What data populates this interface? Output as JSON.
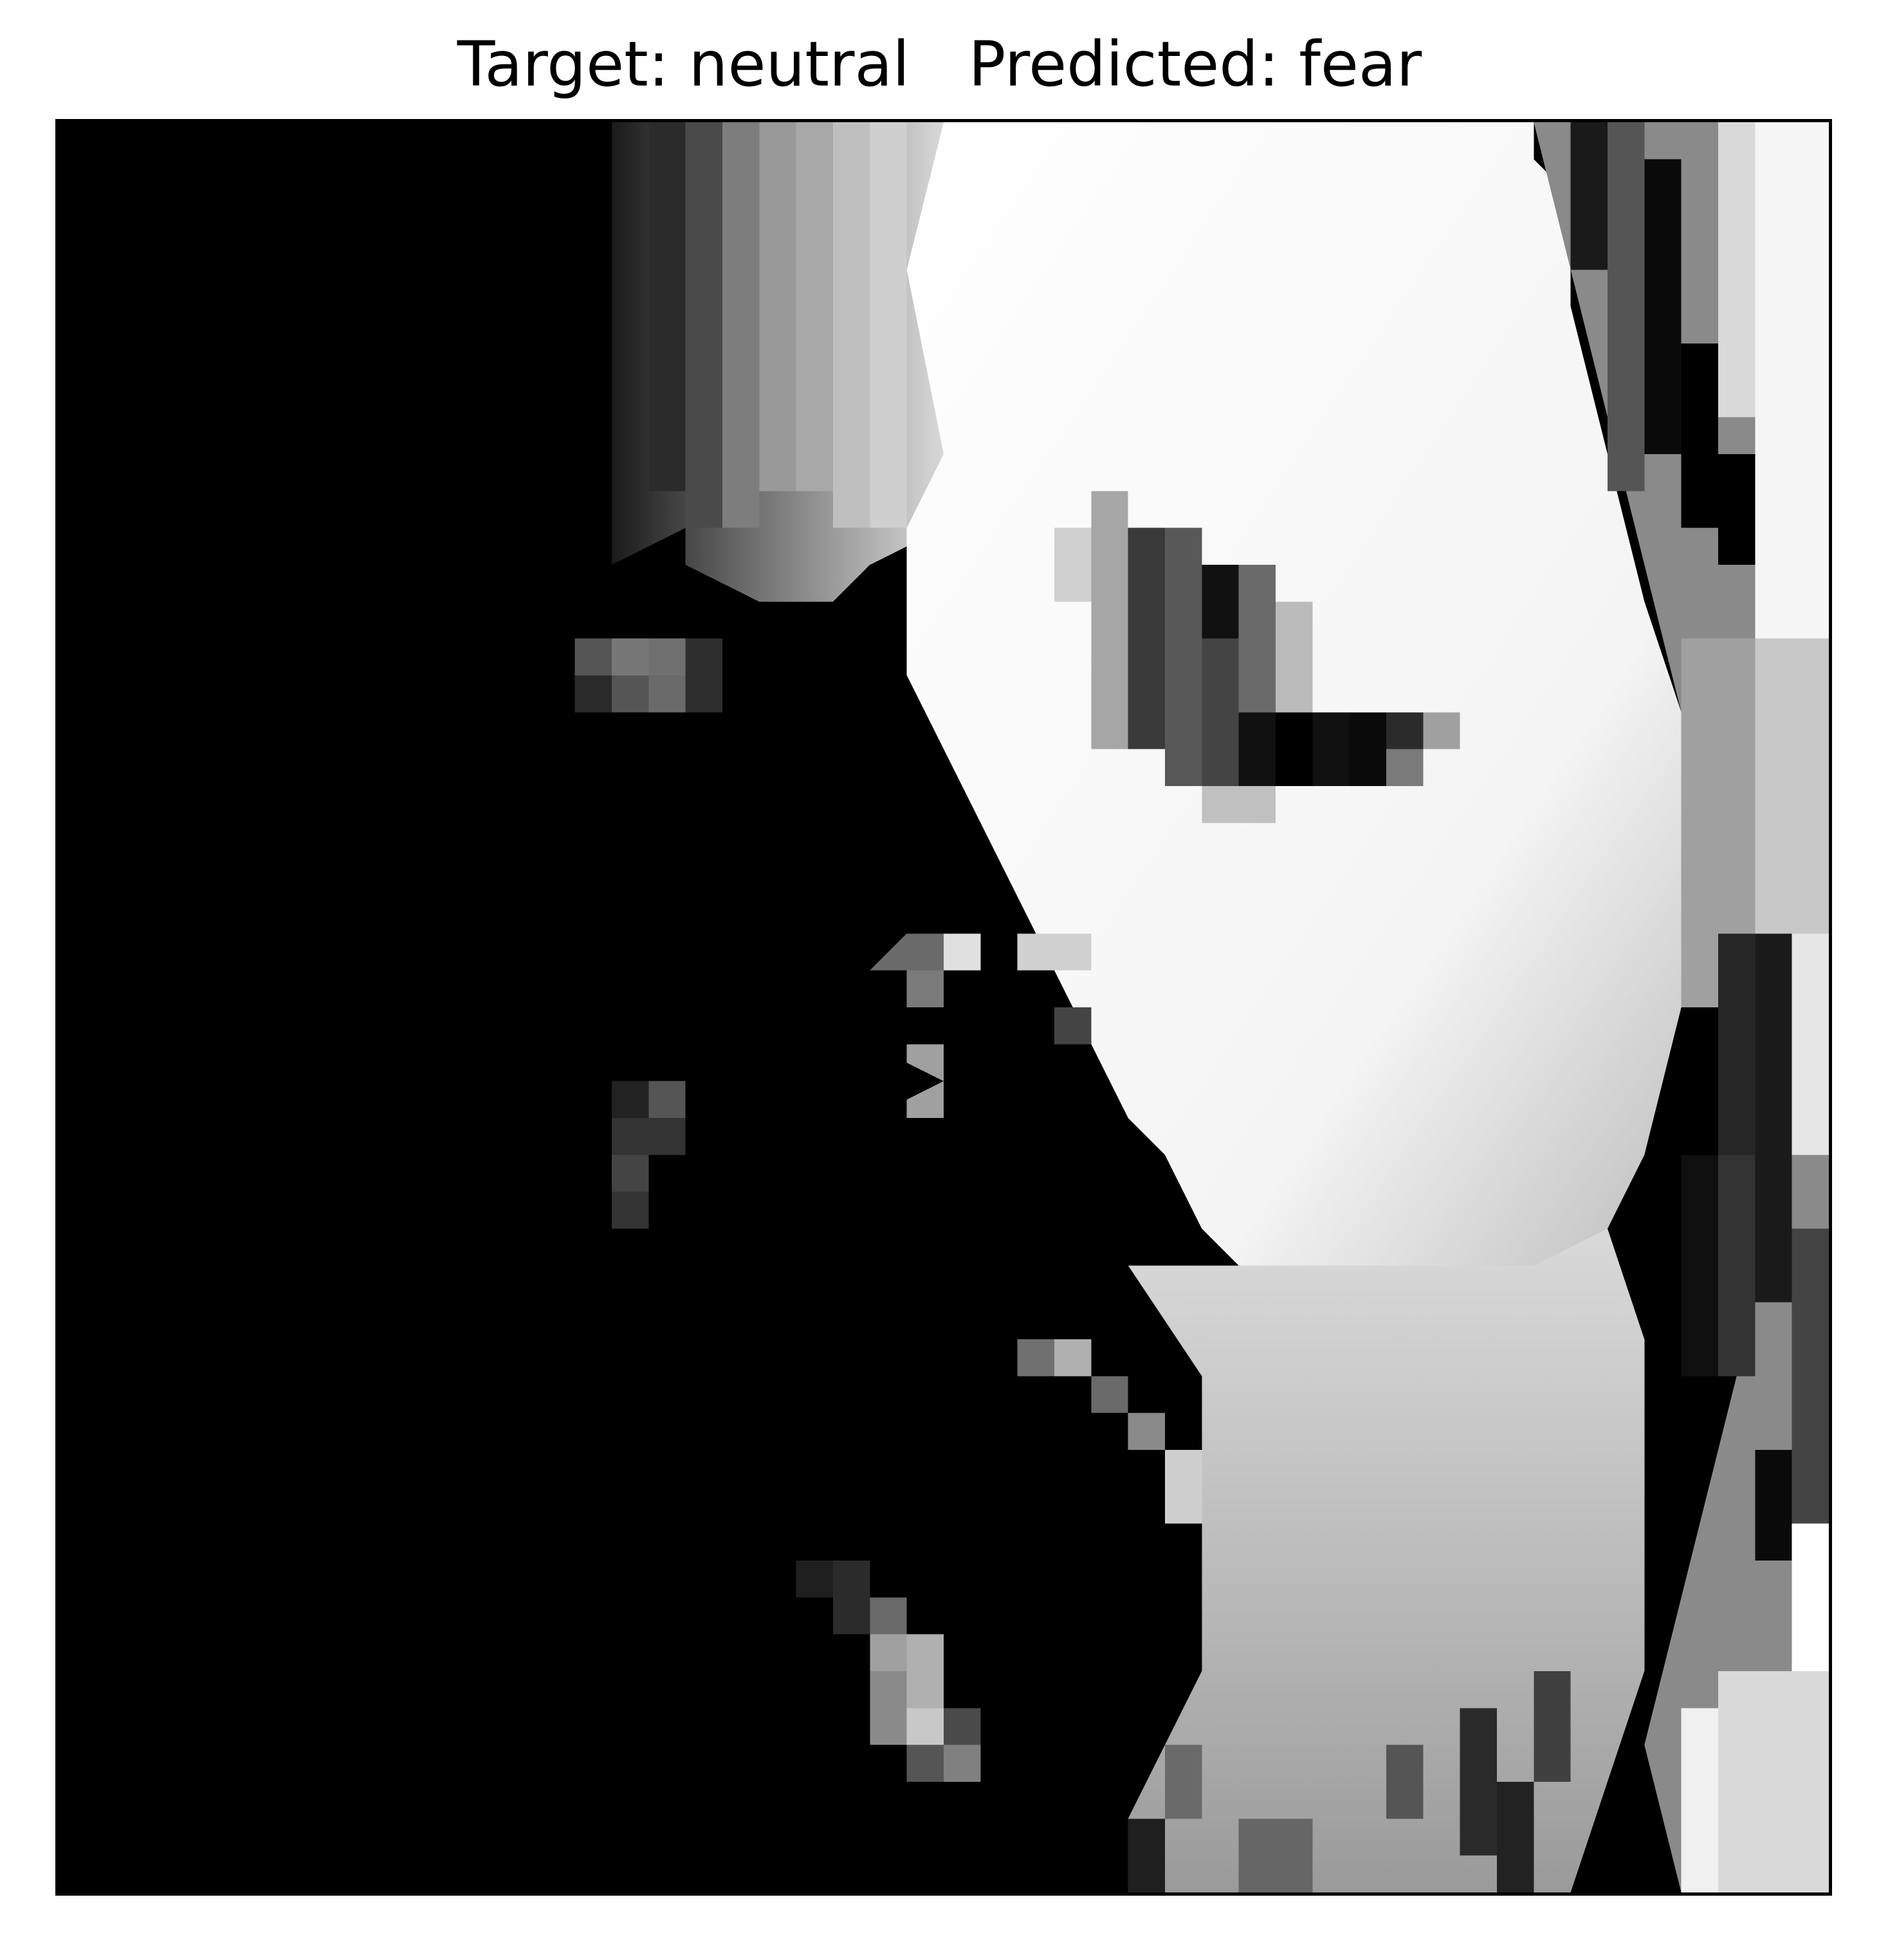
{
  "title": {
    "target_label": "Target:",
    "target_value": "neutral",
    "predicted_label": "Predicted:",
    "predicted_value": "fear"
  },
  "colors": {
    "background": "#ffffff",
    "frame": "#000000",
    "dark": "#000000",
    "light": "#ffffff"
  }
}
